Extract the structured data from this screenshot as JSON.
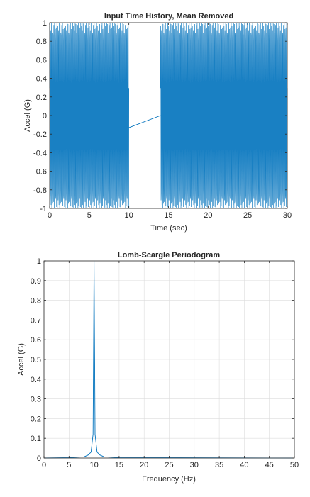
{
  "colors": {
    "series": "#0072bd",
    "series_light": "#7fb6e0",
    "grid": "#dcdcdc",
    "axis": "#262626"
  },
  "chart_data": [
    {
      "type": "line",
      "title": "Input Time History, Mean Removed",
      "xlabel": "Time (sec)",
      "ylabel": "Accel (G)",
      "xlim": [
        0,
        30
      ],
      "ylim": [
        -1,
        1
      ],
      "xticks": [
        "0",
        "5",
        "10",
        "15",
        "20",
        "25",
        "30"
      ],
      "yticks": [
        "-1",
        "-0.8",
        "-0.6",
        "-0.4",
        "-0.2",
        "0",
        "0.2",
        "0.4",
        "0.6",
        "0.8",
        "1"
      ],
      "grid": false,
      "series": [
        {
          "signal": "sine",
          "amplitude": 1,
          "frequency_hz": 10,
          "segments": [
            [
              0,
              10
            ],
            [
              14,
              30
            ]
          ],
          "gap": {
            "x": [
              10,
              14
            ],
            "y": [
              -0.13,
              0.0
            ]
          }
        }
      ]
    },
    {
      "type": "line",
      "title": "Lomb-Scargle Periodogram",
      "xlabel": "Frequency (Hz)",
      "ylabel": "Accel (G)",
      "xlim": [
        0,
        50
      ],
      "ylim": [
        0,
        1
      ],
      "xticks": [
        "0",
        "5",
        "10",
        "15",
        "20",
        "25",
        "30",
        "35",
        "40",
        "45",
        "50"
      ],
      "yticks": [
        "0",
        "0.1",
        "0.2",
        "0.3",
        "0.4",
        "0.5",
        "0.6",
        "0.7",
        "0.8",
        "0.9",
        "1"
      ],
      "grid": true,
      "series": [
        {
          "x": [
            0,
            5,
            8,
            8.8,
            9.4,
            9.8,
            10,
            10.2,
            10.6,
            11.2,
            12,
            15,
            50
          ],
          "y": [
            0,
            0.002,
            0.006,
            0.015,
            0.03,
            0.12,
            1.0,
            0.12,
            0.03,
            0.015,
            0.006,
            0.002,
            0.0
          ]
        }
      ]
    }
  ]
}
